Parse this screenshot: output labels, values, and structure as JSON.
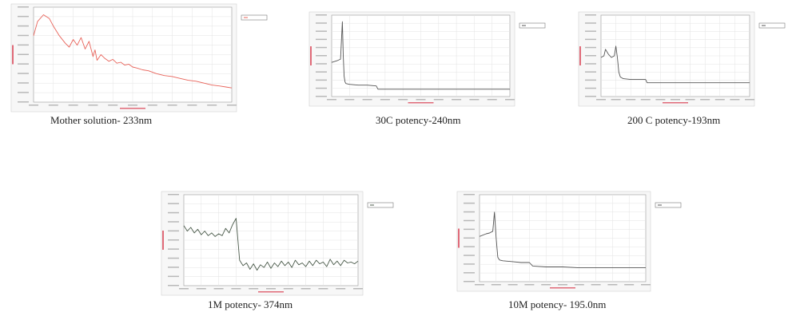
{
  "captions": {
    "p1": "Mother solution- 233nm",
    "p2": "30C potency-240nm",
    "p3": "200 C potency-193nm",
    "p4": "1M potency- 374nm",
    "p5": "10M potency- 195.0nm"
  },
  "chart_data": [
    {
      "type": "line",
      "color": "#e8635a",
      "xlim": [
        0,
        1
      ],
      "ylim": [
        0,
        1
      ],
      "grid": true,
      "legend": "top-right",
      "x": [
        0.0,
        0.02,
        0.05,
        0.08,
        0.1,
        0.13,
        0.16,
        0.18,
        0.2,
        0.22,
        0.24,
        0.26,
        0.28,
        0.3,
        0.31,
        0.32,
        0.34,
        0.36,
        0.38,
        0.4,
        0.42,
        0.44,
        0.46,
        0.48,
        0.5,
        0.52,
        0.55,
        0.58,
        0.62,
        0.66,
        0.7,
        0.74,
        0.78,
        0.82,
        0.86,
        0.9,
        0.94,
        0.97,
        1.0
      ],
      "y": [
        0.7,
        0.85,
        0.92,
        0.88,
        0.8,
        0.7,
        0.62,
        0.58,
        0.66,
        0.6,
        0.68,
        0.56,
        0.64,
        0.48,
        0.55,
        0.44,
        0.5,
        0.46,
        0.43,
        0.45,
        0.41,
        0.42,
        0.39,
        0.4,
        0.37,
        0.36,
        0.34,
        0.33,
        0.3,
        0.28,
        0.27,
        0.25,
        0.23,
        0.22,
        0.2,
        0.18,
        0.17,
        0.16,
        0.15
      ]
    },
    {
      "type": "line",
      "color": "#555555",
      "xlim": [
        0,
        1
      ],
      "ylim": [
        0,
        1
      ],
      "grid": true,
      "legend": "top-right",
      "x": [
        0.0,
        0.03,
        0.05,
        0.06,
        0.065,
        0.07,
        0.075,
        0.08,
        0.1,
        0.15,
        0.2,
        0.25,
        0.26,
        0.3,
        0.4,
        0.5,
        0.6,
        0.7,
        0.8,
        0.9,
        1.0
      ],
      "y": [
        0.42,
        0.44,
        0.46,
        0.92,
        0.5,
        0.25,
        0.18,
        0.16,
        0.15,
        0.14,
        0.14,
        0.13,
        0.09,
        0.09,
        0.09,
        0.09,
        0.09,
        0.09,
        0.09,
        0.09,
        0.09
      ]
    },
    {
      "type": "line",
      "color": "#555555",
      "xlim": [
        0,
        1
      ],
      "ylim": [
        0,
        1
      ],
      "grid": true,
      "legend": "top-right",
      "x": [
        0.0,
        0.02,
        0.03,
        0.05,
        0.07,
        0.09,
        0.1,
        0.11,
        0.12,
        0.13,
        0.15,
        0.2,
        0.25,
        0.3,
        0.31,
        0.4,
        0.5,
        0.6,
        0.7,
        0.8,
        0.9,
        1.0
      ],
      "y": [
        0.48,
        0.5,
        0.58,
        0.52,
        0.48,
        0.5,
        0.62,
        0.48,
        0.3,
        0.24,
        0.22,
        0.21,
        0.21,
        0.21,
        0.17,
        0.17,
        0.17,
        0.17,
        0.17,
        0.17,
        0.17,
        0.17
      ]
    },
    {
      "type": "line",
      "color": "#4a5a4a",
      "xlim": [
        0,
        1
      ],
      "ylim": [
        0,
        1
      ],
      "grid": true,
      "legend": "top-right",
      "x": [
        0.0,
        0.02,
        0.04,
        0.06,
        0.08,
        0.1,
        0.12,
        0.14,
        0.16,
        0.18,
        0.2,
        0.22,
        0.24,
        0.26,
        0.28,
        0.3,
        0.32,
        0.34,
        0.36,
        0.38,
        0.4,
        0.42,
        0.44,
        0.46,
        0.48,
        0.5,
        0.52,
        0.54,
        0.56,
        0.58,
        0.6,
        0.62,
        0.64,
        0.66,
        0.68,
        0.7,
        0.72,
        0.74,
        0.76,
        0.78,
        0.8,
        0.82,
        0.84,
        0.86,
        0.88,
        0.9,
        0.92,
        0.94,
        0.96,
        0.98,
        1.0
      ],
      "y": [
        0.66,
        0.6,
        0.64,
        0.58,
        0.62,
        0.56,
        0.6,
        0.55,
        0.58,
        0.54,
        0.57,
        0.55,
        0.63,
        0.58,
        0.67,
        0.74,
        0.28,
        0.22,
        0.25,
        0.18,
        0.24,
        0.17,
        0.23,
        0.2,
        0.26,
        0.19,
        0.25,
        0.21,
        0.27,
        0.22,
        0.26,
        0.2,
        0.28,
        0.23,
        0.25,
        0.21,
        0.27,
        0.22,
        0.28,
        0.24,
        0.26,
        0.21,
        0.29,
        0.23,
        0.27,
        0.22,
        0.28,
        0.25,
        0.26,
        0.24,
        0.27
      ]
    },
    {
      "type": "line",
      "color": "#555555",
      "xlim": [
        0,
        1
      ],
      "ylim": [
        0,
        1
      ],
      "grid": true,
      "legend": "top-right",
      "x": [
        0.0,
        0.04,
        0.06,
        0.08,
        0.09,
        0.1,
        0.11,
        0.12,
        0.14,
        0.2,
        0.25,
        0.3,
        0.32,
        0.4,
        0.5,
        0.6,
        0.7,
        0.8,
        0.9,
        1.0
      ],
      "y": [
        0.52,
        0.55,
        0.56,
        0.58,
        0.8,
        0.5,
        0.28,
        0.25,
        0.24,
        0.23,
        0.22,
        0.22,
        0.18,
        0.17,
        0.17,
        0.16,
        0.16,
        0.16,
        0.16,
        0.16
      ]
    }
  ]
}
